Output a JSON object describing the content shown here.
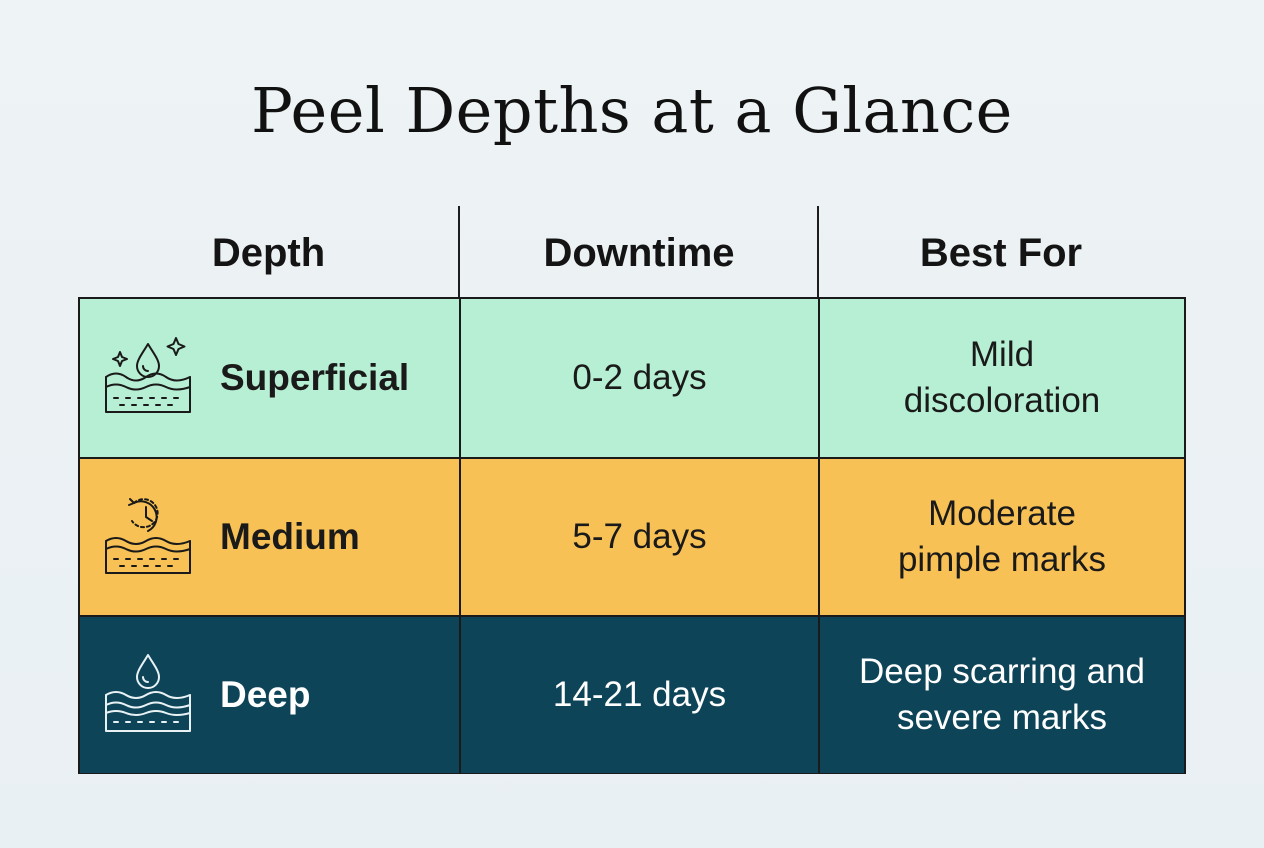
{
  "title": "Peel Depths at a Glance",
  "headers": [
    "Depth",
    "Downtime",
    "Best For"
  ],
  "rows": [
    {
      "icon": "skin-droplet-sparkle-icon",
      "depth": "Superficial",
      "downtime": "0-2 days",
      "best_for": "Mild discoloration",
      "bg": "#b6efd3",
      "text_color": "#1a1a1a"
    },
    {
      "icon": "skin-clock-icon",
      "depth": "Medium",
      "downtime": "5-7 days",
      "best_for": "Moderate pimple marks",
      "bg": "#f8c155",
      "text_color": "#1a1a1a"
    },
    {
      "icon": "skin-droplet-icon",
      "depth": "Deep",
      "downtime": "14-21 days",
      "best_for": "Deep scarring and severe marks",
      "bg": "#0e4458",
      "text_color": "#ffffff"
    }
  ]
}
